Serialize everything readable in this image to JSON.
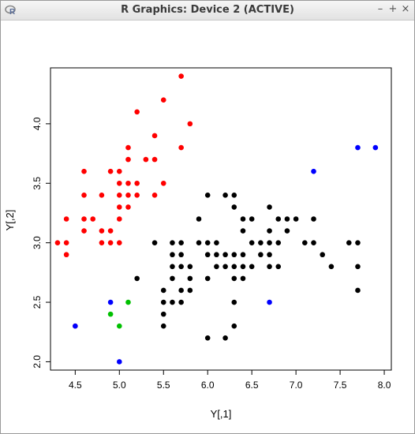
{
  "window": {
    "title": "R Graphics: Device 2 (ACTIVE)",
    "app_icon": "r-logo-icon"
  },
  "controls": {
    "minimize": "–",
    "maximize": "+",
    "close": "×"
  },
  "chart_data": {
    "type": "scatter",
    "xlabel": "Y[,1]",
    "ylabel": "Y[,2]",
    "xlim": [
      4.22,
      8.08
    ],
    "ylim": [
      1.93,
      4.47
    ],
    "xticks": [
      "4.5",
      "5.0",
      "5.5",
      "6.0",
      "6.5",
      "7.0",
      "7.5",
      "8.0"
    ],
    "yticks": [
      "2.0",
      "2.5",
      "3.0",
      "3.5",
      "4.0"
    ],
    "series": [
      {
        "color": "#ff0000",
        "points": [
          [
            4.3,
            3.0
          ],
          [
            4.4,
            2.9
          ],
          [
            4.4,
            3.0
          ],
          [
            4.4,
            3.2
          ],
          [
            4.5,
            2.3
          ],
          [
            4.6,
            3.1
          ],
          [
            4.6,
            3.2
          ],
          [
            4.6,
            3.4
          ],
          [
            4.6,
            3.6
          ],
          [
            4.7,
            3.2
          ],
          [
            4.8,
            3.0
          ],
          [
            4.8,
            3.1
          ],
          [
            4.8,
            3.4
          ],
          [
            4.9,
            3.0
          ],
          [
            4.9,
            3.1
          ],
          [
            4.9,
            3.6
          ],
          [
            5.0,
            3.0
          ],
          [
            5.0,
            3.2
          ],
          [
            5.0,
            3.3
          ],
          [
            5.0,
            3.4
          ],
          [
            5.0,
            3.5
          ],
          [
            5.0,
            3.6
          ],
          [
            5.1,
            3.3
          ],
          [
            5.1,
            3.4
          ],
          [
            5.1,
            3.5
          ],
          [
            5.1,
            3.7
          ],
          [
            5.1,
            3.8
          ],
          [
            5.2,
            3.4
          ],
          [
            5.2,
            3.5
          ],
          [
            5.2,
            4.1
          ],
          [
            5.3,
            3.7
          ],
          [
            5.4,
            3.4
          ],
          [
            5.4,
            3.7
          ],
          [
            5.4,
            3.9
          ],
          [
            5.5,
            3.5
          ],
          [
            5.5,
            4.2
          ],
          [
            5.7,
            3.8
          ],
          [
            5.7,
            4.4
          ],
          [
            5.8,
            4.0
          ]
        ]
      },
      {
        "color": "#00c000",
        "points": [
          [
            4.9,
            2.4
          ],
          [
            5.0,
            2.3
          ],
          [
            5.1,
            2.5
          ]
        ]
      },
      {
        "color": "#0000ff",
        "points": [
          [
            4.5,
            2.3
          ],
          [
            4.9,
            2.5
          ],
          [
            5.0,
            2.0
          ],
          [
            6.7,
            2.5
          ],
          [
            7.2,
            3.6
          ],
          [
            7.7,
            3.8
          ],
          [
            7.9,
            3.8
          ]
        ]
      },
      {
        "color": "#000000",
        "points": [
          [
            5.2,
            2.7
          ],
          [
            5.4,
            3.0
          ],
          [
            5.5,
            2.3
          ],
          [
            5.5,
            2.4
          ],
          [
            5.5,
            2.5
          ],
          [
            5.5,
            2.6
          ],
          [
            5.6,
            2.5
          ],
          [
            5.6,
            2.7
          ],
          [
            5.6,
            2.8
          ],
          [
            5.6,
            2.9
          ],
          [
            5.6,
            3.0
          ],
          [
            5.7,
            2.5
          ],
          [
            5.7,
            2.6
          ],
          [
            5.7,
            2.8
          ],
          [
            5.7,
            2.9
          ],
          [
            5.7,
            3.0
          ],
          [
            5.8,
            2.6
          ],
          [
            5.8,
            2.7
          ],
          [
            5.8,
            2.8
          ],
          [
            5.9,
            3.0
          ],
          [
            5.9,
            3.2
          ],
          [
            6.0,
            2.2
          ],
          [
            6.0,
            2.7
          ],
          [
            6.0,
            2.9
          ],
          [
            6.0,
            3.0
          ],
          [
            6.0,
            3.4
          ],
          [
            6.1,
            2.8
          ],
          [
            6.1,
            2.9
          ],
          [
            6.1,
            3.0
          ],
          [
            6.2,
            2.2
          ],
          [
            6.2,
            2.8
          ],
          [
            6.2,
            2.9
          ],
          [
            6.2,
            3.4
          ],
          [
            6.3,
            2.3
          ],
          [
            6.3,
            2.5
          ],
          [
            6.3,
            2.7
          ],
          [
            6.3,
            2.8
          ],
          [
            6.3,
            2.9
          ],
          [
            6.3,
            3.3
          ],
          [
            6.3,
            3.4
          ],
          [
            6.4,
            2.7
          ],
          [
            6.4,
            2.8
          ],
          [
            6.4,
            2.9
          ],
          [
            6.4,
            3.1
          ],
          [
            6.4,
            3.2
          ],
          [
            6.5,
            2.8
          ],
          [
            6.5,
            3.0
          ],
          [
            6.5,
            3.2
          ],
          [
            6.6,
            2.9
          ],
          [
            6.6,
            3.0
          ],
          [
            6.7,
            2.8
          ],
          [
            6.7,
            2.9
          ],
          [
            6.7,
            3.0
          ],
          [
            6.7,
            3.1
          ],
          [
            6.7,
            3.3
          ],
          [
            6.8,
            2.8
          ],
          [
            6.8,
            3.0
          ],
          [
            6.8,
            3.2
          ],
          [
            6.9,
            3.1
          ],
          [
            6.9,
            3.2
          ],
          [
            7.0,
            3.2
          ],
          [
            7.1,
            3.0
          ],
          [
            7.2,
            3.0
          ],
          [
            7.2,
            3.2
          ],
          [
            7.3,
            2.9
          ],
          [
            7.4,
            2.8
          ],
          [
            7.6,
            3.0
          ],
          [
            7.7,
            2.6
          ],
          [
            7.7,
            2.8
          ],
          [
            7.7,
            3.0
          ]
        ]
      }
    ]
  }
}
